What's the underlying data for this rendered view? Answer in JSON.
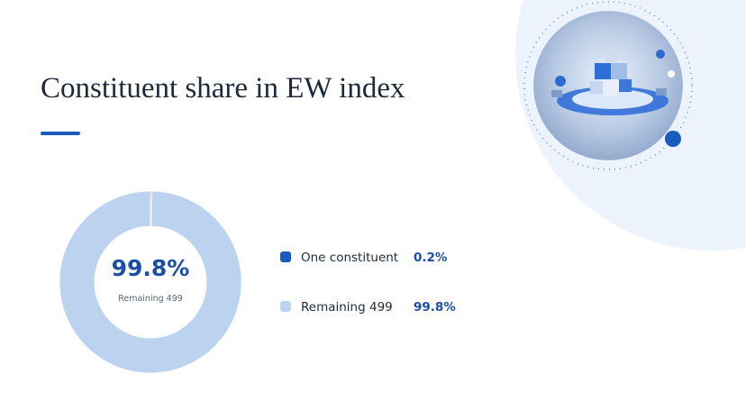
{
  "chart_data": {
    "type": "pie",
    "title": "Constituent share in EW index",
    "categories": [
      "One constituent",
      "Remaining 499"
    ],
    "values": [
      0.2,
      99.8
    ],
    "value_labels": [
      "0.2%",
      "99.8%"
    ],
    "colors": [
      "#1a5bbf",
      "#bcd3f0"
    ]
  }
}
